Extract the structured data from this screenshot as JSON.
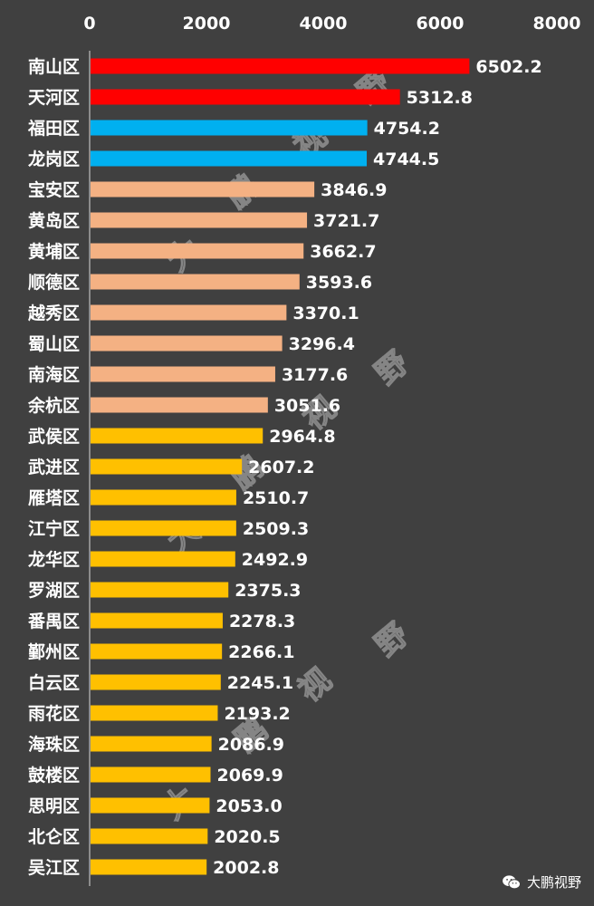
{
  "chart_data": {
    "type": "bar",
    "orientation": "horizontal",
    "categories": [
      "南山区",
      "天河区",
      "福田区",
      "龙岗区",
      "宝安区",
      "黄岛区",
      "黄埔区",
      "顺德区",
      "越秀区",
      "蜀山区",
      "南海区",
      "余杭区",
      "武侯区",
      "武进区",
      "雁塔区",
      "江宁区",
      "龙华区",
      "罗湖区",
      "番禺区",
      "鄞州区",
      "白云区",
      "雨花区",
      "海珠区",
      "鼓楼区",
      "思明区",
      "北仑区",
      "吴江区"
    ],
    "values": [
      6502.2,
      5312.8,
      4754.2,
      4744.5,
      3846.9,
      3721.7,
      3662.7,
      3593.6,
      3370.1,
      3296.4,
      3177.6,
      3051.6,
      2964.8,
      2607.2,
      2510.7,
      2509.3,
      2492.9,
      2375.3,
      2278.3,
      2266.1,
      2245.1,
      2193.2,
      2086.9,
      2069.9,
      2053.0,
      2020.5,
      2002.8
    ],
    "value_labels": [
      "6502.2",
      "5312.8",
      "4754.2",
      "4744.5",
      "3846.9",
      "3721.7",
      "3662.7",
      "3593.6",
      "3370.1",
      "3296.4",
      "3177.6",
      "3051.6",
      "2964.8",
      "2607.2",
      "2510.7",
      "2509.3",
      "2492.9",
      "2375.3",
      "2278.3",
      "2266.1",
      "2245.1",
      "2193.2",
      "2086.9",
      "2069.9",
      "2053.0",
      "2020.5",
      "2002.8"
    ],
    "bar_colors": [
      "#ff0000",
      "#ff0000",
      "#00b0f0",
      "#00b0f0",
      "#f4b183",
      "#f4b183",
      "#f4b183",
      "#f4b183",
      "#f4b183",
      "#f4b183",
      "#f4b183",
      "#f4b183",
      "#ffc000",
      "#ffc000",
      "#ffc000",
      "#ffc000",
      "#ffc000",
      "#ffc000",
      "#ffc000",
      "#ffc000",
      "#ffc000",
      "#ffc000",
      "#ffc000",
      "#ffc000",
      "#ffc000",
      "#ffc000",
      "#ffc000"
    ],
    "xlim": [
      0,
      8000
    ],
    "xticks": [
      0,
      2000,
      4000,
      6000,
      8000
    ],
    "x_axis_position": "top",
    "grid": false,
    "title": "",
    "xlabel": "",
    "ylabel": ""
  },
  "colors": {
    "background": "#404040",
    "axis": "#d9d9d9",
    "text": "#ffffff"
  },
  "watermark": {
    "chars": [
      "大",
      "鹏",
      "视",
      "野"
    ]
  },
  "footer": {
    "icon": "wechat-icon",
    "text": "大鹏视野"
  }
}
